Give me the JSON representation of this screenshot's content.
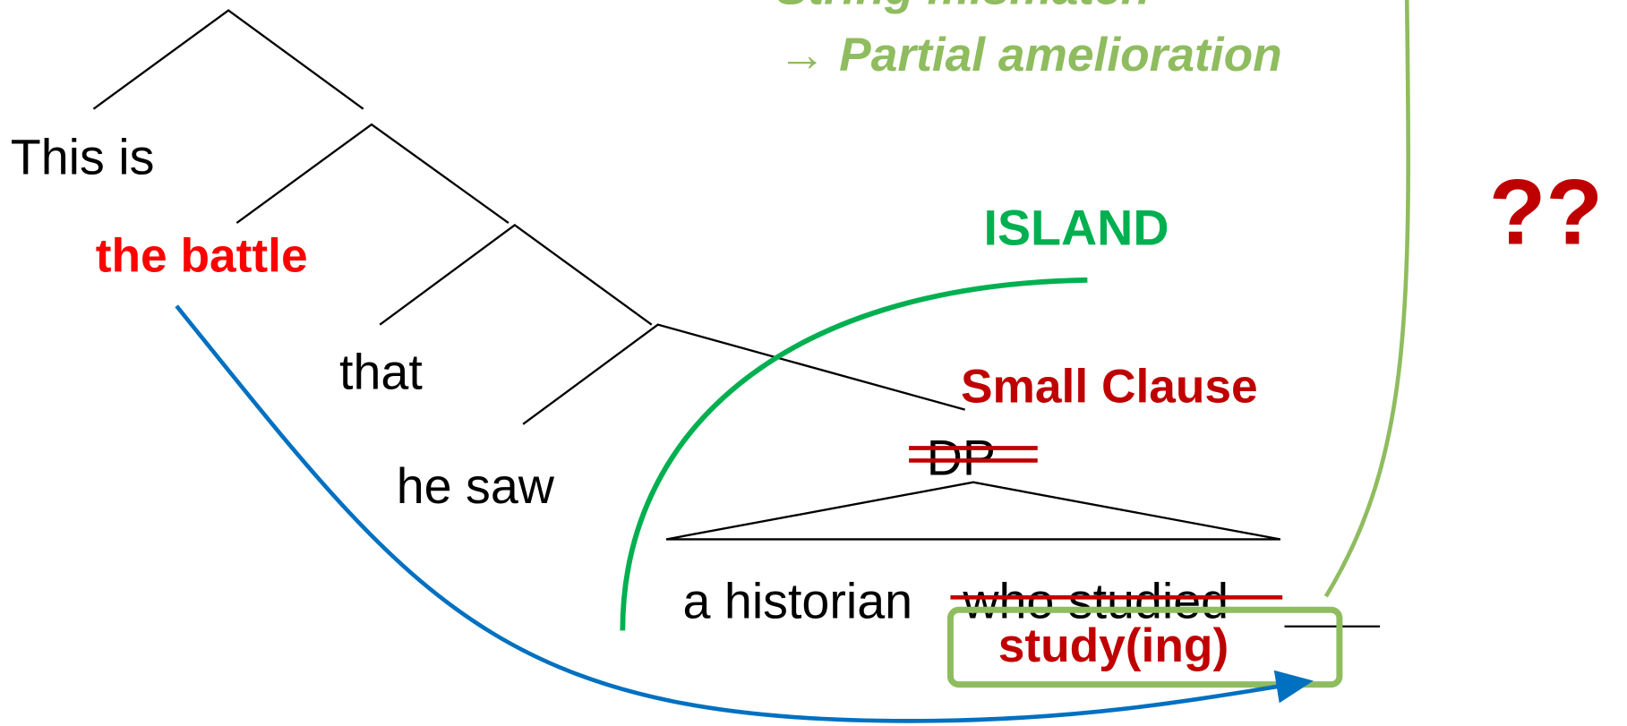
{
  "annotation": {
    "line1": "String mismatch",
    "line2": "→ Partial amelioration"
  },
  "tree": {
    "words": [
      "This is",
      "the battle",
      "that",
      "he saw"
    ]
  },
  "small_clause": "Small Clause",
  "dp": "DP",
  "island": "ISLAND",
  "phrase": {
    "kept": "a historian",
    "struck": "who studied",
    "replacement": "study(ing)"
  },
  "judgment": "??"
}
